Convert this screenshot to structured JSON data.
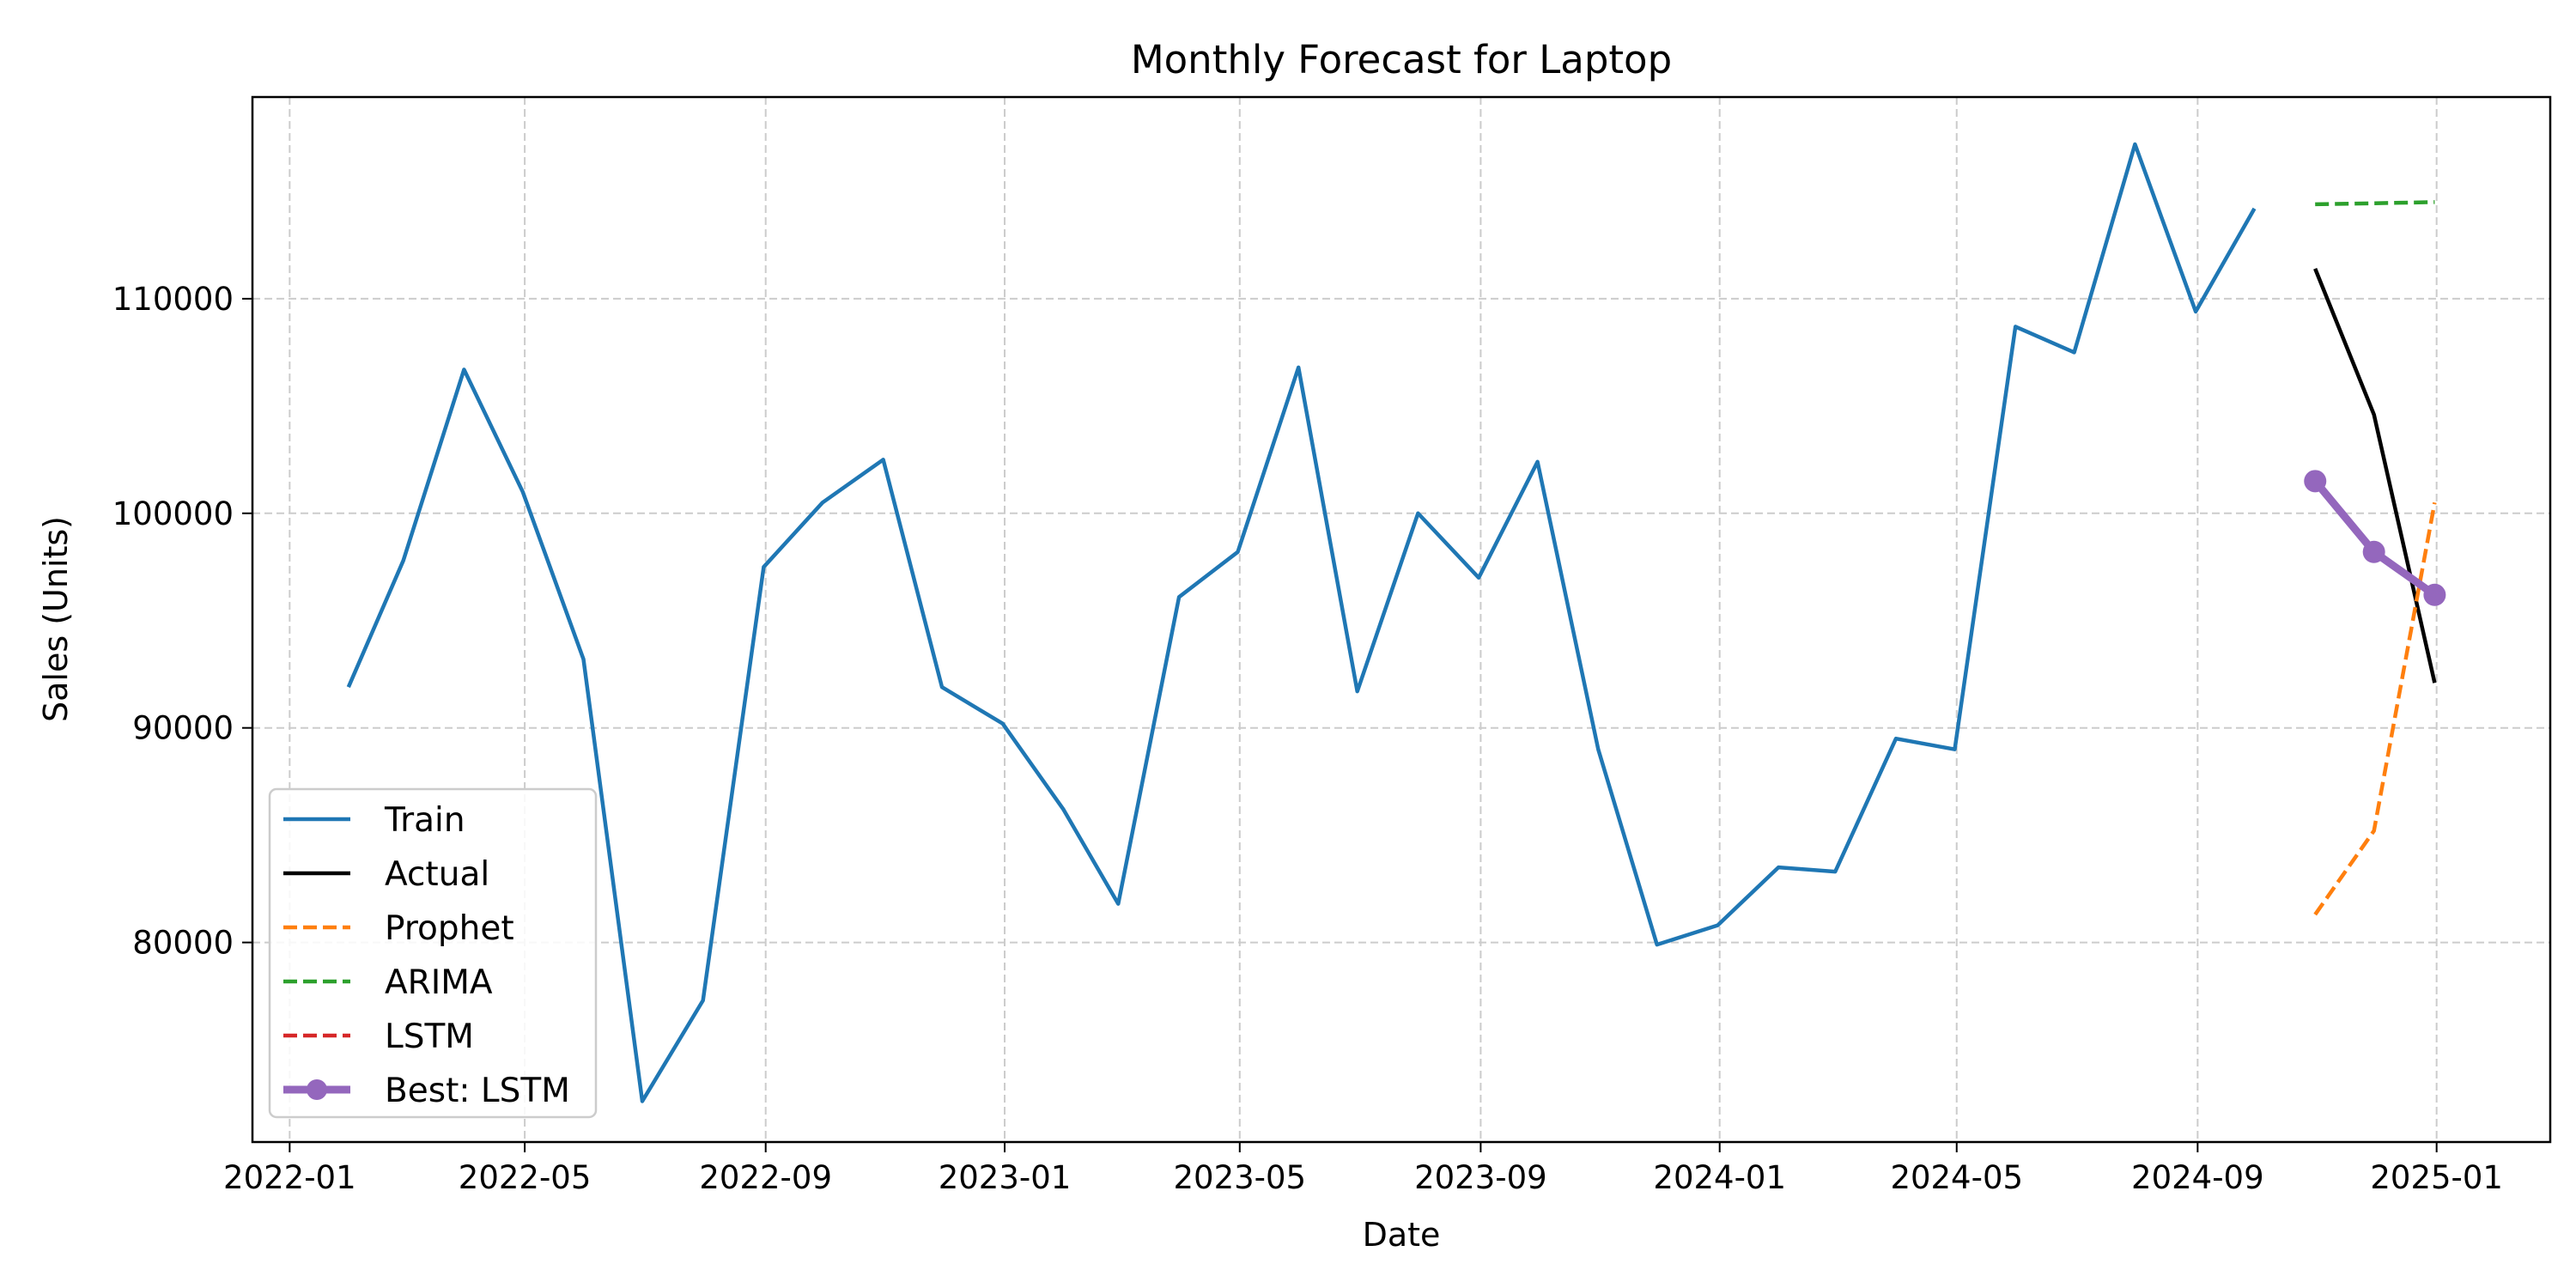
{
  "chart_data": {
    "type": "line",
    "title": "Monthly Forecast for Laptop",
    "xlabel": "Date",
    "ylabel": "Sales (Units)",
    "xlim": [
      "2021-12-13",
      "2025-02-28"
    ],
    "ylim": [
      70700,
      119400
    ],
    "x_ticks": [
      "2022-01",
      "2022-05",
      "2022-09",
      "2023-01",
      "2023-05",
      "2023-09",
      "2024-01",
      "2024-05",
      "2024-09",
      "2025-01"
    ],
    "y_ticks": [
      80000,
      90000,
      100000,
      110000
    ],
    "grid": true,
    "legend_position": "lower-left",
    "series": [
      {
        "name": "Train",
        "color": "#1f77b4",
        "style": "solid",
        "points": [
          {
            "x": "2022-01-31",
            "y": 91900
          },
          {
            "x": "2022-02-28",
            "y": 97800
          },
          {
            "x": "2022-03-31",
            "y": 106700
          },
          {
            "x": "2022-04-30",
            "y": 101000
          },
          {
            "x": "2022-05-31",
            "y": 93200
          },
          {
            "x": "2022-06-30",
            "y": 72600
          },
          {
            "x": "2022-07-31",
            "y": 77300
          },
          {
            "x": "2022-08-31",
            "y": 97500
          },
          {
            "x": "2022-09-30",
            "y": 100500
          },
          {
            "x": "2022-10-31",
            "y": 102500
          },
          {
            "x": "2022-11-30",
            "y": 91900
          },
          {
            "x": "2022-12-31",
            "y": 90200
          },
          {
            "x": "2023-01-31",
            "y": 86200
          },
          {
            "x": "2023-02-28",
            "y": 81800
          },
          {
            "x": "2023-03-31",
            "y": 96100
          },
          {
            "x": "2023-04-30",
            "y": 98200
          },
          {
            "x": "2023-05-31",
            "y": 106800
          },
          {
            "x": "2023-06-30",
            "y": 91700
          },
          {
            "x": "2023-07-31",
            "y": 100000
          },
          {
            "x": "2023-08-31",
            "y": 97000
          },
          {
            "x": "2023-09-30",
            "y": 102400
          },
          {
            "x": "2023-10-31",
            "y": 89000
          },
          {
            "x": "2023-11-30",
            "y": 79900
          },
          {
            "x": "2023-12-31",
            "y": 80800
          },
          {
            "x": "2024-01-31",
            "y": 83500
          },
          {
            "x": "2024-02-29",
            "y": 83300
          },
          {
            "x": "2024-03-31",
            "y": 89500
          },
          {
            "x": "2024-04-30",
            "y": 89000
          },
          {
            "x": "2024-05-31",
            "y": 108700
          },
          {
            "x": "2024-06-30",
            "y": 107500
          },
          {
            "x": "2024-07-31",
            "y": 117200
          },
          {
            "x": "2024-08-31",
            "y": 109400
          },
          {
            "x": "2024-09-30",
            "y": 114200
          }
        ]
      },
      {
        "name": "Actual",
        "color": "#000000",
        "style": "solid",
        "points": [
          {
            "x": "2024-10-31",
            "y": 111400
          },
          {
            "x": "2024-11-30",
            "y": 104600
          },
          {
            "x": "2024-12-31",
            "y": 92100
          }
        ]
      },
      {
        "name": "Prophet",
        "color": "#ff7f0e",
        "style": "dashed",
        "points": [
          {
            "x": "2024-10-31",
            "y": 81300
          },
          {
            "x": "2024-11-30",
            "y": 85200
          },
          {
            "x": "2024-12-31",
            "y": 100500
          }
        ]
      },
      {
        "name": "ARIMA",
        "color": "#2ca02c",
        "style": "dashed",
        "points": [
          {
            "x": "2024-10-31",
            "y": 114400
          },
          {
            "x": "2024-11-30",
            "y": 114450
          },
          {
            "x": "2024-12-31",
            "y": 114500
          }
        ]
      },
      {
        "name": "LSTM",
        "color": "#d62728",
        "style": "dashed",
        "points": [
          {
            "x": "2024-10-31",
            "y": 101500
          },
          {
            "x": "2024-11-30",
            "y": 98200
          },
          {
            "x": "2024-12-31",
            "y": 96200
          }
        ]
      },
      {
        "name": "Best: LSTM",
        "color": "#9467bd",
        "style": "solid-markers",
        "points": [
          {
            "x": "2024-10-31",
            "y": 101500
          },
          {
            "x": "2024-11-30",
            "y": 98200
          },
          {
            "x": "2024-12-31",
            "y": 96200
          }
        ]
      }
    ]
  }
}
